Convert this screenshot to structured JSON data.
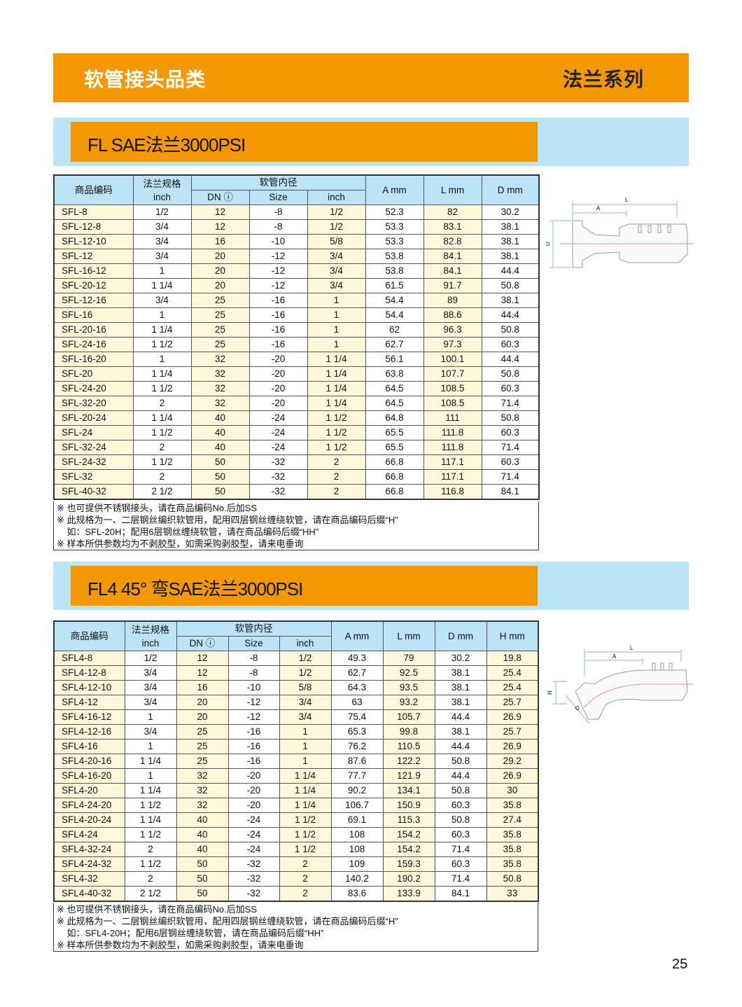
{
  "header": {
    "category": "软管接头品类",
    "series": "法兰系列"
  },
  "sections": [
    {
      "title": "FL SAE法兰3000PSI",
      "headers": {
        "code": "商品编码",
        "flange": "法兰规格",
        "flange_unit": "inch",
        "hose_id": "软管内径",
        "dn": "DN",
        "size": "Size",
        "inch": "inch",
        "extra": [
          "A mm",
          "L mm",
          "D mm"
        ]
      },
      "rows": [
        [
          "SFL-8",
          "1/2",
          "12",
          "-8",
          "1/2",
          "52.3",
          "82",
          "30.2"
        ],
        [
          "SFL-12-8",
          "3/4",
          "12",
          "-8",
          "1/2",
          "53.3",
          "83.1",
          "38.1"
        ],
        [
          "SFL-12-10",
          "3/4",
          "16",
          "-10",
          "5/8",
          "53.3",
          "82.8",
          "38.1"
        ],
        [
          "SFL-12",
          "3/4",
          "20",
          "-12",
          "3/4",
          "53.8",
          "84.1",
          "38.1"
        ],
        [
          "SFL-16-12",
          "1",
          "20",
          "-12",
          "3/4",
          "53.8",
          "84.1",
          "44.4"
        ],
        [
          "SFL-20-12",
          "1 1/4",
          "20",
          "-12",
          "3/4",
          "61.5",
          "91.7",
          "50.8"
        ],
        [
          "SFL-12-16",
          "3/4",
          "25",
          "-16",
          "1",
          "54.4",
          "89",
          "38.1"
        ],
        [
          "SFL-16",
          "1",
          "25",
          "-16",
          "1",
          "54.4",
          "88.6",
          "44.4"
        ],
        [
          "SFL-20-16",
          "1 1/4",
          "25",
          "-16",
          "1",
          "62",
          "96.3",
          "50.8"
        ],
        [
          "SFL-24-16",
          "1 1/2",
          "25",
          "-16",
          "1",
          "62.7",
          "97.3",
          "60.3"
        ],
        [
          "SFL-16-20",
          "1",
          "32",
          "-20",
          "1 1/4",
          "56.1",
          "100.1",
          "44.4"
        ],
        [
          "SFL-20",
          "1 1/4",
          "32",
          "-20",
          "1 1/4",
          "63.8",
          "107.7",
          "50.8"
        ],
        [
          "SFL-24-20",
          "1 1/2",
          "32",
          "-20",
          "1 1/4",
          "64.5",
          "108.5",
          "60.3"
        ],
        [
          "SFL-32-20",
          "2",
          "32",
          "-20",
          "1 1/4",
          "64.5",
          "108.5",
          "71.4"
        ],
        [
          "SFL-20-24",
          "1 1/4",
          "40",
          "-24",
          "1 1/2",
          "64.8",
          "111",
          "50.8"
        ],
        [
          "SFL-24",
          "1 1/2",
          "40",
          "-24",
          "1 1/2",
          "65.5",
          "111.8",
          "60.3"
        ],
        [
          "SFL-32-24",
          "2",
          "40",
          "-24",
          "1 1/2",
          "65.5",
          "111.8",
          "71.4"
        ],
        [
          "SFL-24-32",
          "1 1/2",
          "50",
          "-32",
          "2",
          "66.8",
          "117.1",
          "60.3"
        ],
        [
          "SFL-32",
          "2",
          "50",
          "-32",
          "2",
          "66.8",
          "117.1",
          "71.4"
        ],
        [
          "SFL-40-32",
          "2 1/2",
          "50",
          "-32",
          "2",
          "66.8",
          "116.8",
          "84.1"
        ]
      ],
      "notes": [
        "※ 也可提供不锈钢接头，请在商品编码No.后加SS",
        "※ 此规格为一、二层钢丝编织软管用，配用四层钢丝缠绕软管，请在商品编码后缀“H”",
        "    如：SFL-20H；配用6层钢丝缠绕软管，请在商品编码后缀“HH”",
        "※ 样本所供参数均为不剥胶型，如需采购剥胶型，请来电垂询"
      ],
      "drawing_labels": [
        "L",
        "A",
        "D"
      ]
    },
    {
      "title": "FL4 45°  弯SAE法兰3000PSI",
      "headers": {
        "code": "商品编码",
        "flange": "法兰规格",
        "flange_unit": "inch",
        "hose_id": "软管内径",
        "dn": "DN",
        "size": "Size",
        "inch": "inch",
        "extra": [
          "A mm",
          "L mm",
          "D mm",
          "H mm"
        ]
      },
      "rows": [
        [
          "SFL4-8",
          "1/2",
          "12",
          "-8",
          "1/2",
          "49.3",
          "79",
          "30.2",
          "19.8"
        ],
        [
          "SFL4-12-8",
          "3/4",
          "12",
          "-8",
          "1/2",
          "62.7",
          "92.5",
          "38.1",
          "25.4"
        ],
        [
          "SFL4-12-10",
          "3/4",
          "16",
          "-10",
          "5/8",
          "64.3",
          "93.5",
          "38.1",
          "25.4"
        ],
        [
          "SFL4-12",
          "3/4",
          "20",
          "-12",
          "3/4",
          "63",
          "93.2",
          "38.1",
          "25.7"
        ],
        [
          "SFL4-16-12",
          "1",
          "20",
          "-12",
          "3/4",
          "75.4",
          "105.7",
          "44.4",
          "26.9"
        ],
        [
          "SFL4-12-16",
          "3/4",
          "25",
          "-16",
          "1",
          "65.3",
          "99.8",
          "38.1",
          "25.7"
        ],
        [
          "SFL4-16",
          "1",
          "25",
          "-16",
          "1",
          "76.2",
          "110.5",
          "44.4",
          "26.9"
        ],
        [
          "SFL4-20-16",
          "1 1/4",
          "25",
          "-16",
          "1",
          "87.6",
          "122.2",
          "50.8",
          "29.2"
        ],
        [
          "SFL4-16-20",
          "1",
          "32",
          "-20",
          "1 1/4",
          "77.7",
          "121.9",
          "44.4",
          "26.9"
        ],
        [
          "SFL4-20",
          "1 1/4",
          "32",
          "-20",
          "1 1/4",
          "90.2",
          "134.1",
          "50.8",
          "30"
        ],
        [
          "SFL4-24-20",
          "1 1/2",
          "32",
          "-20",
          "1 1/4",
          "106.7",
          "150.9",
          "60.3",
          "35.8"
        ],
        [
          "SFL4-20-24",
          "1 1/4",
          "40",
          "-24",
          "1 1/2",
          "69.1",
          "115.3",
          "50.8",
          "27.4"
        ],
        [
          "SFL4-24",
          "1 1/2",
          "40",
          "-24",
          "1 1/2",
          "108",
          "154.2",
          "60.3",
          "35.8"
        ],
        [
          "SFL4-32-24",
          "2",
          "40",
          "-24",
          "1 1/2",
          "108",
          "154.2",
          "71.4",
          "35.8"
        ],
        [
          "SFL4-24-32",
          "1 1/2",
          "50",
          "-32",
          "2",
          "109",
          "159.3",
          "60.3",
          "35.8"
        ],
        [
          "SFL4-32",
          "2",
          "50",
          "-32",
          "2",
          "140.2",
          "190.2",
          "71.4",
          "50.8"
        ],
        [
          "SFL4-40-32",
          "2 1/2",
          "50",
          "-32",
          "2",
          "83.6",
          "133.9",
          "84.1",
          "33"
        ]
      ],
      "notes": [
        "※ 也可提供不锈钢接头，请在商品编码No.后加SS",
        "※ 此规格为一、二层钢丝编织软管用，配用四层钢丝缠绕软管，请在商品编码后缀“H”",
        "    如：SFL4-20H；配用6层钢丝缠绕软管，请在商品编码后缀“HH”",
        "※ 样本所供参数均为不剥胶型，如需采购剥胶型，请来电垂询"
      ],
      "drawing_labels": [
        "L",
        "A",
        "H",
        "D"
      ]
    }
  ],
  "page_number": "25",
  "colors": {
    "orange": "#f39800",
    "light_blue": "#bde3f6",
    "cell_yellow": "#fdf7dc"
  }
}
